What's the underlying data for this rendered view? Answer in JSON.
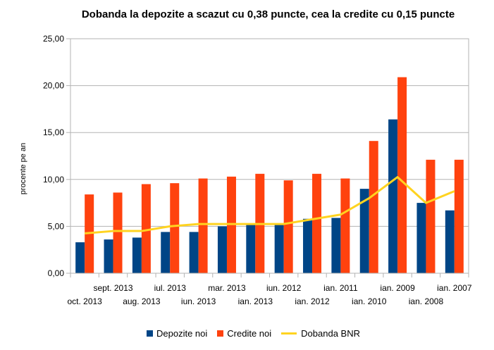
{
  "chart_data": {
    "type": "bar",
    "title": "Dobanda la depozite a scazut cu 0,38 puncte, cea la credite cu 0,15 puncte",
    "xlabel": "",
    "ylabel": "procente pe an",
    "ylim": [
      0,
      25
    ],
    "yticks": [
      "0,00",
      "5,00",
      "10,00",
      "15,00",
      "20,00",
      "25,00"
    ],
    "grid": true,
    "legend_position": "bottom",
    "categories": [
      "oct. 2013",
      "sept. 2013",
      "aug. 2013",
      "iul. 2013",
      "iun. 2013",
      "mar. 2013",
      "ian. 2013",
      "iun. 2012",
      "ian. 2012",
      "ian. 2011",
      "ian. 2010",
      "ian. 2009",
      "ian. 2008",
      "ian. 2007"
    ],
    "series": [
      {
        "name": "Depozite noi",
        "type": "bar",
        "color": "#004586",
        "values": [
          3.3,
          3.6,
          3.8,
          4.4,
          4.4,
          5.0,
          5.2,
          5.2,
          5.8,
          5.9,
          9.0,
          16.4,
          7.5,
          6.7
        ]
      },
      {
        "name": "Credite noi",
        "type": "bar",
        "color": "#ff420e",
        "values": [
          8.4,
          8.6,
          9.5,
          9.6,
          10.1,
          10.3,
          10.6,
          9.9,
          10.6,
          10.1,
          14.1,
          20.9,
          12.1,
          12.1
        ]
      },
      {
        "name": "Dobanda BNR",
        "type": "line",
        "color": "#ffd320",
        "values": [
          4.25,
          4.5,
          4.5,
          5.0,
          5.25,
          5.25,
          5.25,
          5.25,
          5.75,
          6.25,
          8.0,
          10.25,
          7.5,
          8.75
        ]
      }
    ]
  }
}
